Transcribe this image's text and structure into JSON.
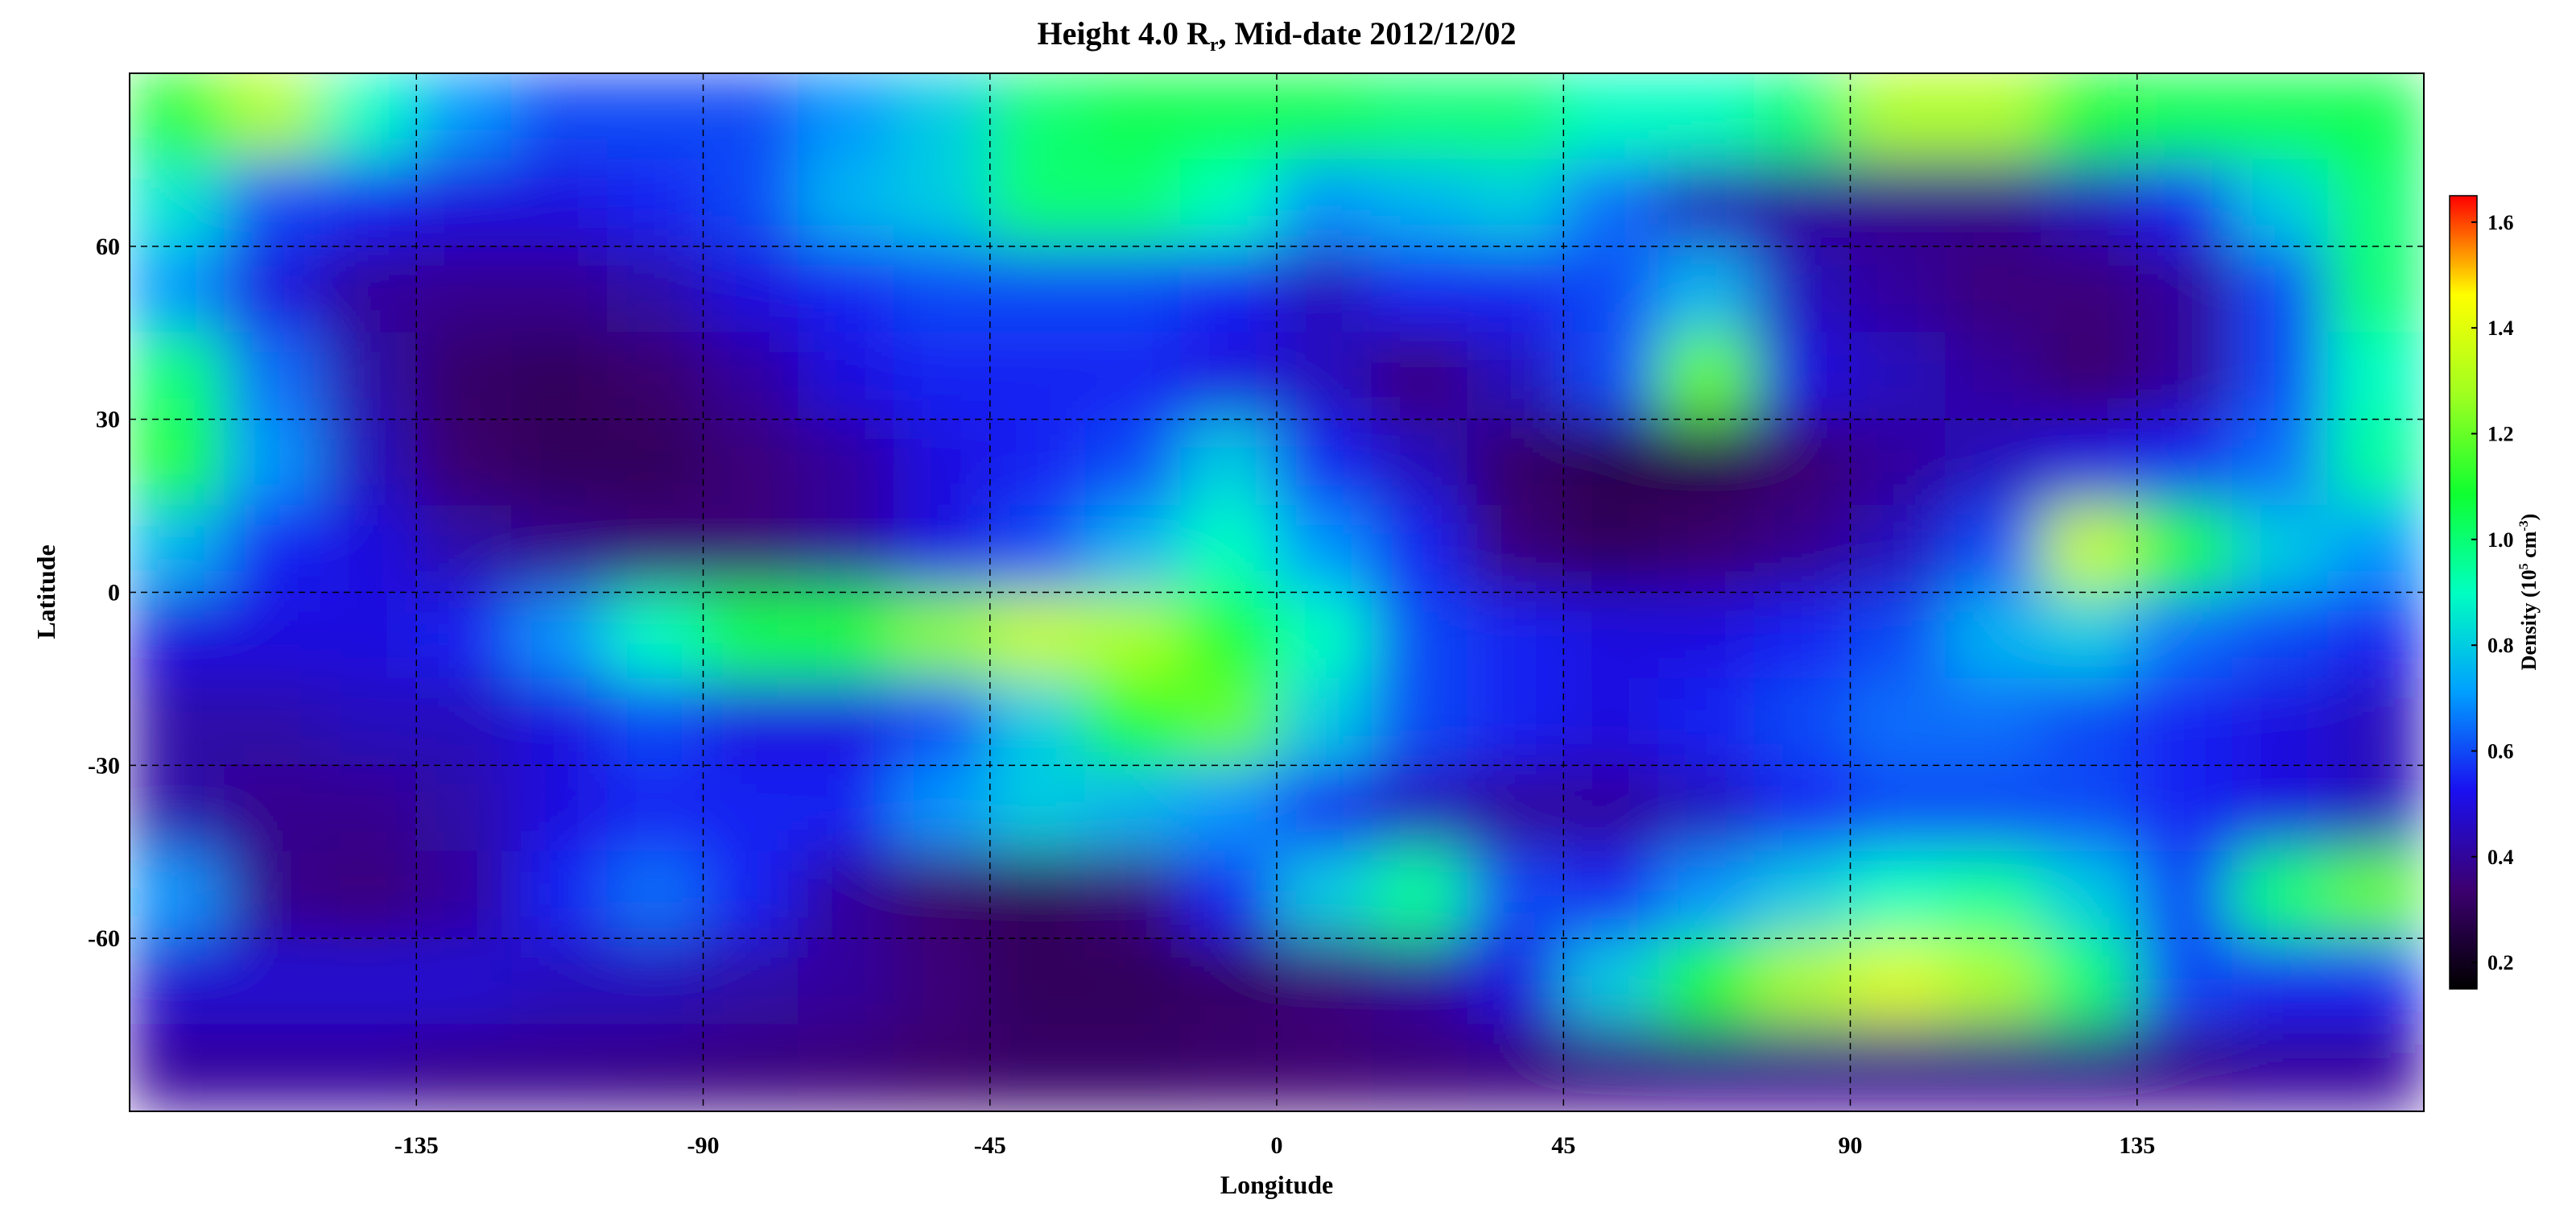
{
  "chart_data": {
    "type": "heatmap",
    "title": [
      "Height 4.0 R",
      "r",
      ", Mid-date 2012/12/02"
    ],
    "xlabel": "Longitude",
    "ylabel": "Latitude",
    "colorbar_label": [
      "Density (10",
      "5",
      " cm",
      "-3",
      ")"
    ],
    "xlim": [
      -180,
      180
    ],
    "ylim": [
      -90,
      90
    ],
    "xticks": [
      -135,
      -90,
      -45,
      0,
      45,
      90,
      135
    ],
    "yticks": [
      -60,
      -30,
      0,
      30,
      60
    ],
    "grid": true,
    "clim": [
      0.15,
      1.65
    ],
    "cticks": [
      0.2,
      0.4,
      0.6,
      0.8,
      {
        "value": 1,
        "label": "1.0"
      },
      1.2,
      1.4,
      1.6
    ],
    "colormap": [
      "#000000",
      "#3c0070",
      "#1a10f0",
      "#00a0ff",
      "#00ffc0",
      "#10ff30",
      "#a0ff20",
      "#ffff00",
      "#ff0000"
    ],
    "x": [
      -172.5,
      -157.5,
      -142.5,
      -127.5,
      -112.5,
      -97.5,
      -82.5,
      -67.5,
      -52.5,
      -37.5,
      -22.5,
      -7.5,
      7.5,
      22.5,
      37.5,
      52.5,
      67.5,
      82.5,
      97.5,
      112.5,
      127.5,
      142.5,
      157.5,
      172.5
    ],
    "y": [
      82.5,
      67.5,
      52.5,
      37.5,
      22.5,
      7.5,
      -7.5,
      -22.5,
      -37.5,
      -52.5,
      -67.5,
      -82.5
    ],
    "z": [
      [
        1.1,
        1.3,
        0.9,
        0.7,
        0.6,
        0.6,
        0.6,
        0.7,
        0.8,
        1.0,
        1.05,
        1.05,
        1.05,
        1.0,
        1.0,
        0.9,
        0.9,
        1.0,
        1.3,
        1.3,
        1.1,
        1.05,
        1.05,
        1.05
      ],
      [
        0.85,
        0.6,
        0.55,
        0.5,
        0.5,
        0.55,
        0.6,
        0.75,
        0.8,
        1.0,
        1.0,
        0.9,
        0.7,
        0.75,
        0.8,
        0.65,
        0.45,
        0.4,
        0.38,
        0.38,
        0.45,
        0.55,
        0.8,
        1.0
      ],
      [
        0.7,
        0.5,
        0.4,
        0.38,
        0.38,
        0.42,
        0.5,
        0.55,
        0.6,
        0.6,
        0.6,
        0.55,
        0.45,
        0.55,
        0.55,
        0.6,
        0.75,
        0.45,
        0.4,
        0.35,
        0.35,
        0.4,
        0.6,
        1.0
      ],
      [
        1.0,
        0.65,
        0.42,
        0.32,
        0.3,
        0.33,
        0.4,
        0.5,
        0.55,
        0.55,
        0.55,
        0.5,
        0.45,
        0.35,
        0.45,
        0.6,
        1.2,
        0.5,
        0.45,
        0.4,
        0.33,
        0.4,
        0.6,
        0.9
      ],
      [
        1.1,
        0.7,
        0.45,
        0.33,
        0.3,
        0.3,
        0.35,
        0.4,
        0.5,
        0.55,
        0.6,
        0.8,
        0.55,
        0.45,
        0.32,
        0.28,
        0.28,
        0.33,
        0.4,
        0.45,
        0.5,
        0.55,
        0.65,
        0.95
      ],
      [
        0.75,
        0.55,
        0.5,
        0.42,
        0.38,
        0.35,
        0.35,
        0.4,
        0.5,
        0.6,
        0.75,
        0.9,
        0.7,
        0.55,
        0.35,
        0.3,
        0.33,
        0.38,
        0.45,
        0.6,
        1.35,
        1.1,
        0.8,
        0.7
      ],
      [
        0.5,
        0.5,
        0.5,
        0.55,
        0.7,
        0.9,
        1.05,
        1.1,
        1.25,
        1.35,
        1.3,
        1.1,
        0.9,
        0.6,
        0.55,
        0.5,
        0.5,
        0.55,
        0.6,
        0.75,
        0.8,
        0.65,
        0.6,
        0.55
      ],
      [
        0.42,
        0.42,
        0.45,
        0.45,
        0.5,
        0.6,
        0.5,
        0.5,
        0.6,
        0.8,
        1.1,
        1.2,
        0.8,
        0.6,
        0.55,
        0.5,
        0.55,
        0.6,
        0.65,
        0.65,
        0.6,
        0.55,
        0.5,
        0.45
      ],
      [
        0.42,
        0.38,
        0.38,
        0.42,
        0.5,
        0.55,
        0.55,
        0.55,
        0.7,
        0.8,
        0.75,
        0.7,
        0.55,
        0.45,
        0.4,
        0.4,
        0.45,
        0.55,
        0.6,
        0.6,
        0.6,
        0.55,
        0.5,
        0.45
      ],
      [
        0.7,
        0.38,
        0.35,
        0.4,
        0.55,
        0.65,
        0.55,
        0.4,
        0.33,
        0.3,
        0.35,
        0.55,
        0.8,
        0.95,
        0.6,
        0.55,
        0.7,
        0.8,
        0.9,
        0.95,
        0.8,
        0.6,
        1.0,
        1.2
      ],
      [
        0.48,
        0.48,
        0.48,
        0.48,
        0.45,
        0.45,
        0.42,
        0.4,
        0.35,
        0.3,
        0.3,
        0.32,
        0.35,
        0.4,
        0.5,
        0.8,
        1.1,
        1.3,
        1.4,
        1.3,
        1.0,
        0.6,
        0.55,
        0.55
      ],
      [
        0.4,
        0.4,
        0.4,
        0.38,
        0.38,
        0.37,
        0.36,
        0.35,
        0.33,
        0.32,
        0.32,
        0.33,
        0.34,
        0.35,
        0.36,
        0.37,
        0.38,
        0.38,
        0.38,
        0.38,
        0.38,
        0.38,
        0.4,
        0.4
      ]
    ]
  }
}
